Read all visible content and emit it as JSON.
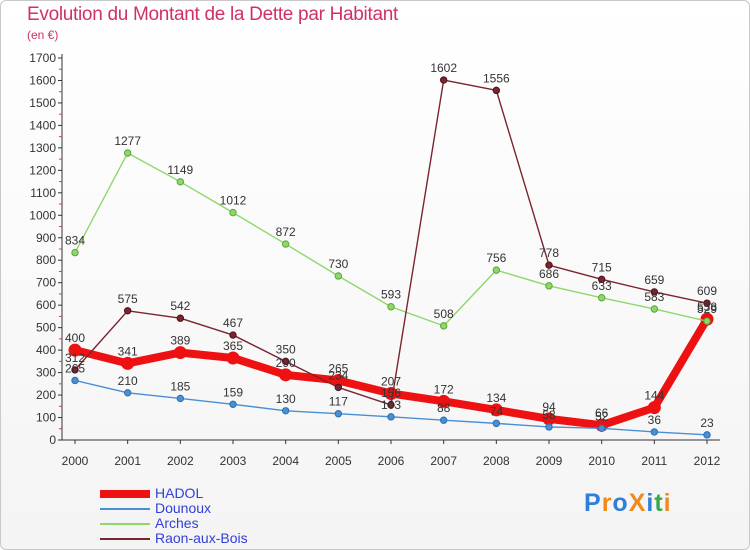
{
  "header": {
    "title": "Evolution du Montant de la Dette par Habitant",
    "unit": "(en €)"
  },
  "logo": {
    "text": "ProXiti"
  },
  "chart_data": {
    "type": "line",
    "title": "Evolution du Montant de la Dette par Habitant",
    "ylabel": "(en €)",
    "xlabel": "",
    "ylim": [
      0,
      1700
    ],
    "ytick_step": 100,
    "grid": false,
    "legend_position": "bottom-left",
    "x": [
      "2000",
      "2001",
      "2002",
      "2003",
      "2004",
      "2005",
      "2006",
      "2007",
      "2008",
      "2009",
      "2010",
      "2011",
      "2012"
    ],
    "series": [
      {
        "name": "HADOL",
        "color": "#ee1111",
        "values": [
          400,
          341,
          389,
          365,
          290,
          265,
          207,
          172,
          134,
          94,
          66,
          144,
          538
        ],
        "show_labels": [
          true,
          true,
          true,
          true,
          true,
          true,
          true,
          true,
          true,
          true,
          true,
          true,
          true
        ]
      },
      {
        "name": "Dounoux",
        "color": "#4a8fd4",
        "values": [
          265,
          210,
          185,
          159,
          130,
          117,
          103,
          88,
          74,
          58,
          52,
          36,
          23
        ],
        "show_labels": [
          true,
          true,
          true,
          true,
          true,
          true,
          true,
          true,
          true,
          true,
          true,
          true,
          true
        ]
      },
      {
        "name": "Arches",
        "color": "#8ed86a",
        "values": [
          834,
          1277,
          1149,
          1012,
          872,
          730,
          593,
          508,
          756,
          686,
          633,
          583,
          529
        ],
        "show_labels": [
          true,
          true,
          true,
          true,
          true,
          true,
          true,
          true,
          true,
          true,
          true,
          true,
          true
        ]
      },
      {
        "name": "Raon-aux-Bois",
        "color": "#7a2530",
        "values": [
          312,
          575,
          542,
          467,
          350,
          234,
          156,
          1602,
          1556,
          778,
          715,
          659,
          609
        ],
        "show_labels": [
          true,
          true,
          true,
          true,
          true,
          true,
          true,
          true,
          true,
          true,
          true,
          true,
          true
        ]
      }
    ]
  }
}
